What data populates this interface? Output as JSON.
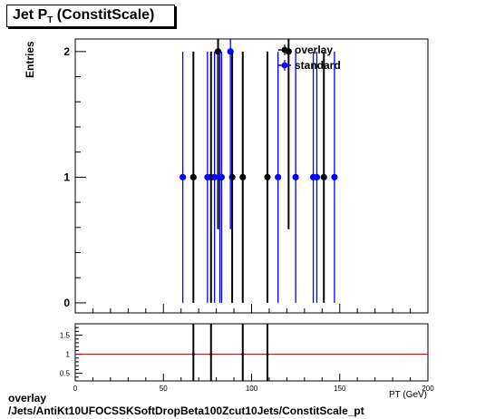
{
  "title": {
    "main": "Jet P",
    "sub": "T",
    "suffix": " (ConstitScale)"
  },
  "ylabel": "Entries",
  "xlabel_partial": "P_T (GeV)",
  "footer": {
    "line1": "overlay",
    "line2": "/Jets/AntiKt10UFOCSSKSoftDropBeta100Zcut10Jets/ConstitScale_pt"
  },
  "legend": [
    {
      "label": "overlay",
      "color": "#000000"
    },
    {
      "label": "standard",
      "color": "#0000ff"
    }
  ],
  "chart_data": [
    {
      "type": "scatter",
      "title": "Jet P_T (ConstitScale)",
      "ylabel": "Entries",
      "xlim": [
        0,
        200
      ],
      "ylim": [
        -0.08,
        2.1
      ],
      "yticks": [
        0,
        1,
        2
      ],
      "xticks": [
        0,
        50,
        100,
        150,
        200
      ],
      "series": [
        {
          "name": "overlay",
          "color": "#000000",
          "points": [
            {
              "x": 67,
              "y": 1
            },
            {
              "x": 77,
              "y": 1
            },
            {
              "x": 81,
              "y": 2
            },
            {
              "x": 89,
              "y": 1
            },
            {
              "x": 95,
              "y": 1
            },
            {
              "x": 109,
              "y": 1
            },
            {
              "x": 121,
              "y": 2
            },
            {
              "x": 141,
              "y": 1
            }
          ]
        },
        {
          "name": "standard",
          "color": "#0000ff",
          "points": [
            {
              "x": 61,
              "y": 1
            },
            {
              "x": 75,
              "y": 1
            },
            {
              "x": 79,
              "y": 1
            },
            {
              "x": 82,
              "y": 1
            },
            {
              "x": 83,
              "y": 1
            },
            {
              "x": 88,
              "y": 2
            },
            {
              "x": 115,
              "y": 1
            },
            {
              "x": 125,
              "y": 1
            },
            {
              "x": 135,
              "y": 1
            },
            {
              "x": 137,
              "y": 1
            },
            {
              "x": 147,
              "y": 1
            }
          ]
        }
      ]
    },
    {
      "type": "scatter",
      "xlim": [
        0,
        200
      ],
      "ylim": [
        0.3,
        1.8
      ],
      "yticks": [
        0.5,
        1,
        1.5
      ],
      "xticks": [
        0,
        50,
        100,
        150,
        200
      ],
      "reference_line": 1,
      "series": [
        {
          "name": "",
          "color": "#000000",
          "points": [
            {
              "x": 67,
              "y": 1
            },
            {
              "x": 77,
              "y": 1
            },
            {
              "x": 95,
              "y": 1
            },
            {
              "x": 109,
              "y": 1
            }
          ]
        }
      ]
    }
  ]
}
